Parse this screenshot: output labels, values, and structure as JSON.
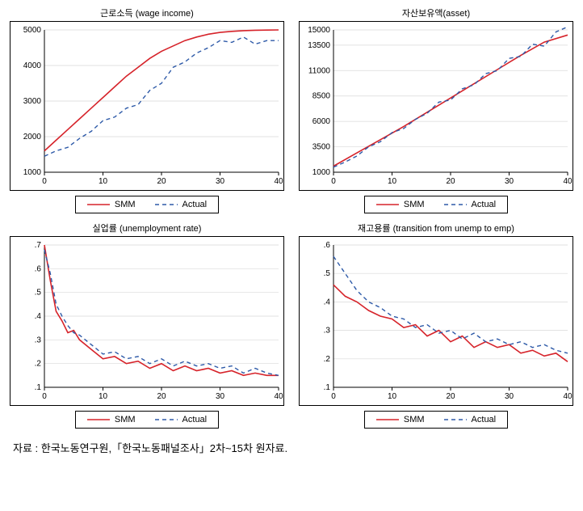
{
  "colors": {
    "smm": "#d6232a",
    "actual": "#2e5aa8",
    "grid": "#d9d9d9",
    "axis": "#000000",
    "bg": "#ffffff"
  },
  "line_styles": {
    "smm": {
      "width": 1.6,
      "dash": ""
    },
    "actual": {
      "width": 1.4,
      "dash": "5,4"
    }
  },
  "legend": {
    "smm_label": "SMM",
    "actual_label": "Actual"
  },
  "panels": [
    {
      "id": "wage",
      "title": "근로소득 (wage income)",
      "xlim": [
        0,
        40
      ],
      "xticks": [
        0,
        10,
        20,
        30,
        40
      ],
      "ylim": [
        1000,
        5000
      ],
      "yticks": [
        1000,
        2000,
        3000,
        4000,
        5000
      ],
      "smm": {
        "x": [
          0,
          2,
          4,
          6,
          8,
          10,
          12,
          14,
          16,
          18,
          20,
          22,
          24,
          26,
          28,
          30,
          32,
          34,
          36,
          38,
          40
        ],
        "y": [
          1600,
          1900,
          2200,
          2500,
          2800,
          3100,
          3400,
          3700,
          3950,
          4200,
          4400,
          4550,
          4700,
          4800,
          4880,
          4930,
          4960,
          4980,
          4990,
          4995,
          5000
        ]
      },
      "actual": {
        "x": [
          0,
          2,
          4,
          6,
          8,
          10,
          12,
          14,
          16,
          18,
          20,
          22,
          24,
          26,
          28,
          30,
          32,
          34,
          36,
          38,
          40
        ],
        "y": [
          1450,
          1600,
          1700,
          1950,
          2150,
          2450,
          2550,
          2800,
          2900,
          3300,
          3500,
          3950,
          4100,
          4350,
          4500,
          4700,
          4650,
          4800,
          4600,
          4700,
          4700
        ]
      }
    },
    {
      "id": "asset",
      "title": "자산보유액(asset)",
      "xlim": [
        0,
        40
      ],
      "xticks": [
        0,
        10,
        20,
        30,
        40
      ],
      "ylim": [
        1000,
        15000
      ],
      "yticks": [
        1000,
        3500,
        6000,
        8500,
        11000,
        13500,
        15000
      ],
      "smm": {
        "x": [
          0,
          4,
          8,
          12,
          16,
          20,
          24,
          28,
          32,
          36,
          40
        ],
        "y": [
          1600,
          2900,
          4200,
          5500,
          6900,
          8300,
          9700,
          11100,
          12500,
          13800,
          14500
        ]
      },
      "actual": {
        "x": [
          0,
          2,
          4,
          6,
          8,
          10,
          12,
          14,
          16,
          18,
          20,
          22,
          24,
          26,
          28,
          30,
          32,
          34,
          36,
          38,
          40
        ],
        "y": [
          1500,
          2000,
          2600,
          3500,
          4000,
          4900,
          5300,
          6200,
          6800,
          7900,
          8100,
          9200,
          9600,
          10700,
          11000,
          12200,
          12400,
          13600,
          13400,
          14800,
          15300
        ]
      }
    },
    {
      "id": "unemp",
      "title": "실업률 (unemployment rate)",
      "xlim": [
        0,
        40
      ],
      "xticks": [
        0,
        10,
        20,
        30,
        40
      ],
      "ylim": [
        0.1,
        0.7
      ],
      "yticks": [
        0.1,
        0.2,
        0.3,
        0.4,
        0.5,
        0.6,
        0.7
      ],
      "smm": {
        "x": [
          0,
          1,
          2,
          3,
          4,
          5,
          6,
          8,
          10,
          12,
          14,
          16,
          18,
          20,
          22,
          24,
          26,
          28,
          30,
          32,
          34,
          36,
          38,
          40
        ],
        "y": [
          0.7,
          0.55,
          0.42,
          0.38,
          0.33,
          0.34,
          0.3,
          0.26,
          0.22,
          0.23,
          0.2,
          0.21,
          0.18,
          0.2,
          0.17,
          0.19,
          0.17,
          0.18,
          0.16,
          0.17,
          0.15,
          0.16,
          0.15,
          0.15
        ]
      },
      "actual": {
        "x": [
          0,
          1,
          2,
          3,
          4,
          5,
          6,
          8,
          10,
          12,
          14,
          16,
          18,
          20,
          22,
          24,
          26,
          28,
          30,
          32,
          34,
          36,
          38,
          40
        ],
        "y": [
          0.68,
          0.58,
          0.45,
          0.4,
          0.36,
          0.33,
          0.32,
          0.28,
          0.24,
          0.25,
          0.22,
          0.23,
          0.2,
          0.22,
          0.19,
          0.21,
          0.19,
          0.2,
          0.18,
          0.19,
          0.16,
          0.18,
          0.16,
          0.15
        ]
      }
    },
    {
      "id": "trans",
      "title": "재고용률 (transition from unemp to emp)",
      "xlim": [
        0,
        40
      ],
      "xticks": [
        0,
        10,
        20,
        30,
        40
      ],
      "ylim": [
        0.1,
        0.6
      ],
      "yticks": [
        0.1,
        0.2,
        0.3,
        0.4,
        0.5,
        0.6
      ],
      "smm": {
        "x": [
          0,
          2,
          4,
          6,
          8,
          10,
          12,
          14,
          16,
          18,
          20,
          22,
          24,
          26,
          28,
          30,
          32,
          34,
          36,
          38,
          40
        ],
        "y": [
          0.46,
          0.42,
          0.4,
          0.37,
          0.35,
          0.34,
          0.31,
          0.32,
          0.28,
          0.3,
          0.26,
          0.28,
          0.24,
          0.26,
          0.24,
          0.25,
          0.22,
          0.23,
          0.21,
          0.22,
          0.19
        ]
      },
      "actual": {
        "x": [
          0,
          2,
          4,
          6,
          8,
          10,
          12,
          14,
          16,
          18,
          20,
          22,
          24,
          26,
          28,
          30,
          32,
          34,
          36,
          38,
          40
        ],
        "y": [
          0.56,
          0.5,
          0.44,
          0.4,
          0.38,
          0.35,
          0.34,
          0.31,
          0.32,
          0.29,
          0.3,
          0.27,
          0.29,
          0.26,
          0.27,
          0.25,
          0.26,
          0.24,
          0.25,
          0.23,
          0.22
        ]
      }
    }
  ],
  "footer": "자료 : 한국노동연구원,「한국노동패널조사」2차~15차 원자료."
}
